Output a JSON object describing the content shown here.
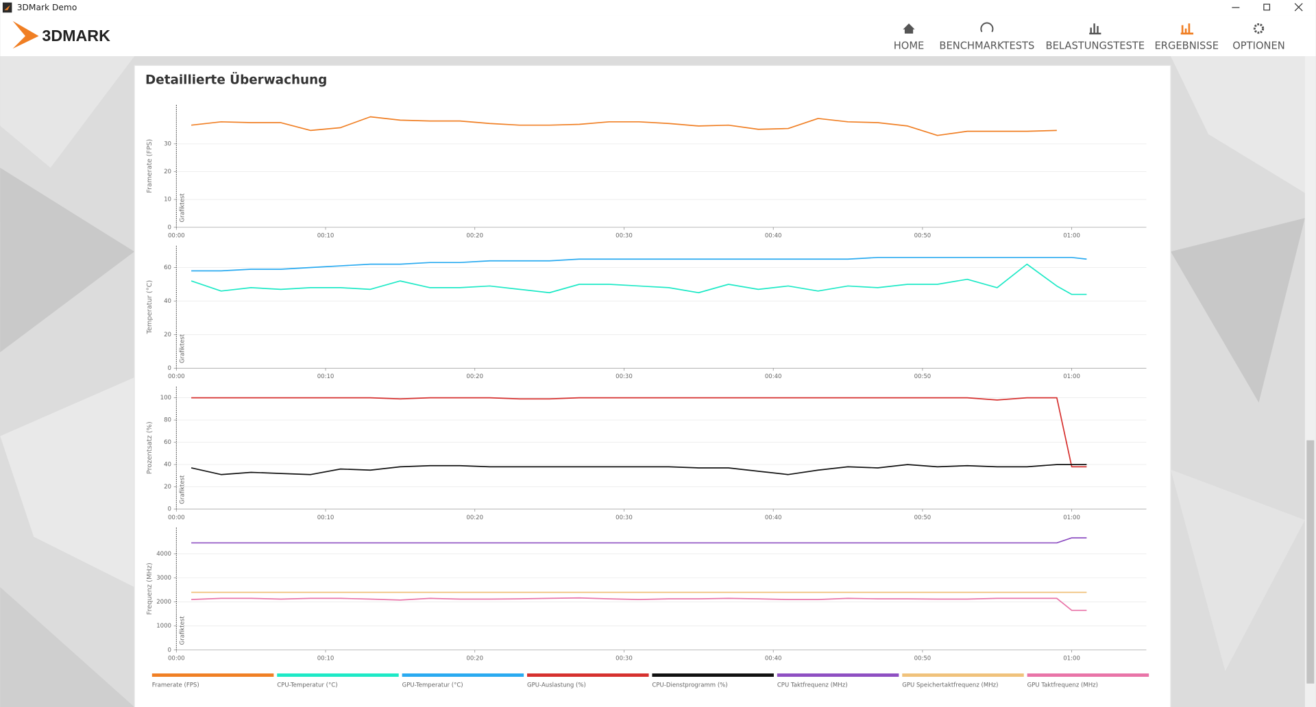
{
  "window": {
    "title": "3DMark Demo"
  },
  "header": {
    "logo": "3DMARK",
    "nav": [
      {
        "label": "HOME",
        "active": false
      },
      {
        "label": "BENCHMARKTESTS",
        "active": false
      },
      {
        "label": "BELASTUNGSTESTE",
        "active": false
      },
      {
        "label": "ERGEBNISSE",
        "active": true
      },
      {
        "label": "OPTIONEN",
        "active": false
      }
    ]
  },
  "section": {
    "title": "Detaillierte Überwachung"
  },
  "chart_data": [
    {
      "type": "line",
      "ylabel": "Framerate (FPS)",
      "annotation": "Grafiktest",
      "grid": true,
      "x": [
        1,
        3,
        5,
        7,
        9,
        11,
        13,
        15,
        17,
        19,
        21,
        23,
        25,
        27,
        29,
        31,
        33,
        35,
        37,
        39,
        41,
        43,
        45,
        47,
        49,
        51,
        53,
        55,
        57,
        59
      ],
      "xlim": [
        0,
        65
      ],
      "xticks": [
        {
          "value": 0,
          "label": "00:00"
        },
        {
          "value": 10,
          "label": "00:10"
        },
        {
          "value": 20,
          "label": "00:20"
        },
        {
          "value": 30,
          "label": "00:30"
        },
        {
          "value": 40,
          "label": "00:40"
        },
        {
          "value": 50,
          "label": "00:50"
        },
        {
          "value": 60,
          "label": "01:00"
        }
      ],
      "ylim": [
        0,
        44
      ],
      "yticks": [
        0,
        10,
        20,
        30
      ],
      "series": [
        {
          "name": "Framerate (FPS)",
          "color": "#f07f24",
          "values": [
            36.7,
            37.9,
            37.6,
            37.6,
            34.8,
            35.8,
            39.7,
            38.5,
            38.2,
            38.2,
            37.3,
            36.7,
            36.7,
            37,
            37.9,
            37.9,
            37.3,
            36.4,
            36.7,
            35.2,
            35.5,
            39.1,
            37.9,
            37.6,
            36.4,
            33,
            34.5,
            34.5,
            34.5,
            34.8
          ]
        }
      ]
    },
    {
      "type": "line",
      "ylabel": "Temperatur (°C)",
      "annotation": "Grafiktest",
      "grid": true,
      "x": [
        1,
        3,
        5,
        7,
        9,
        11,
        13,
        15,
        17,
        19,
        21,
        23,
        25,
        27,
        29,
        31,
        33,
        35,
        37,
        39,
        41,
        43,
        45,
        47,
        49,
        51,
        53,
        55,
        57,
        59,
        60,
        61
      ],
      "xlim": [
        0,
        65
      ],
      "xticks": [
        {
          "value": 0,
          "label": "00:00"
        },
        {
          "value": 10,
          "label": "00:10"
        },
        {
          "value": 20,
          "label": "00:20"
        },
        {
          "value": 30,
          "label": "00:30"
        },
        {
          "value": 40,
          "label": "00:40"
        },
        {
          "value": 50,
          "label": "00:50"
        },
        {
          "value": 60,
          "label": "01:00"
        }
      ],
      "ylim": [
        0,
        73
      ],
      "yticks": [
        0,
        20,
        40,
        60
      ],
      "series": [
        {
          "name": "CPU-Temperatur (°C)",
          "color": "#1de9c6",
          "values": [
            52,
            46,
            48,
            47,
            48,
            48,
            47,
            52,
            48,
            48,
            49,
            47,
            45,
            50,
            50,
            49,
            48,
            45,
            50,
            47,
            49,
            46,
            49,
            48,
            50,
            50,
            53,
            48,
            62,
            49,
            44,
            44
          ]
        },
        {
          "name": "GPU-Temperatur (°C)",
          "color": "#29aaf0",
          "values": [
            58,
            58,
            59,
            59,
            60,
            61,
            62,
            62,
            63,
            63,
            64,
            64,
            64,
            65,
            65,
            65,
            65,
            65,
            65,
            65,
            65,
            65,
            65,
            66,
            66,
            66,
            66,
            66,
            66,
            66,
            66,
            65
          ]
        }
      ]
    },
    {
      "type": "line",
      "ylabel": "Prozentsatz (%)",
      "annotation": "Grafiktest",
      "grid": true,
      "x": [
        1,
        3,
        5,
        7,
        9,
        11,
        13,
        15,
        17,
        19,
        21,
        23,
        25,
        27,
        29,
        31,
        33,
        35,
        37,
        39,
        41,
        43,
        45,
        47,
        49,
        51,
        53,
        55,
        57,
        59,
        60,
        61
      ],
      "xlim": [
        0,
        65
      ],
      "xticks": [
        {
          "value": 0,
          "label": "00:00"
        },
        {
          "value": 10,
          "label": "00:10"
        },
        {
          "value": 20,
          "label": "00:20"
        },
        {
          "value": 30,
          "label": "00:30"
        },
        {
          "value": 40,
          "label": "00:40"
        },
        {
          "value": 50,
          "label": "00:50"
        },
        {
          "value": 60,
          "label": "01:00"
        }
      ],
      "ylim": [
        0,
        110
      ],
      "yticks": [
        0,
        20,
        40,
        60,
        80,
        100
      ],
      "series": [
        {
          "name": "GPU-Auslastung (%)",
          "color": "#d6302e",
          "values": [
            100,
            100,
            100,
            100,
            100,
            100,
            100,
            99,
            100,
            100,
            100,
            99,
            99,
            100,
            100,
            100,
            100,
            100,
            100,
            100,
            100,
            100,
            100,
            100,
            100,
            100,
            100,
            98,
            100,
            100,
            38,
            38
          ]
        },
        {
          "name": "CPU-Dienstprogramm (%)",
          "color": "#111111",
          "values": [
            37,
            31,
            33,
            32,
            31,
            36,
            35,
            38,
            39,
            39,
            38,
            38,
            38,
            38,
            38,
            38,
            38,
            37,
            37,
            34,
            31,
            35,
            38,
            37,
            40,
            38,
            39,
            38,
            38,
            40,
            40,
            40
          ]
        }
      ]
    },
    {
      "type": "line",
      "ylabel": "Frequenz (MHz)",
      "annotation": "Grafiktest",
      "grid": true,
      "x": [
        1,
        3,
        5,
        7,
        9,
        11,
        13,
        15,
        17,
        19,
        21,
        23,
        25,
        27,
        29,
        31,
        33,
        35,
        37,
        39,
        41,
        43,
        45,
        47,
        49,
        51,
        53,
        55,
        57,
        59,
        60,
        61
      ],
      "xlim": [
        0,
        65
      ],
      "xticks": [
        {
          "value": 0,
          "label": "00:00"
        },
        {
          "value": 10,
          "label": "00:10"
        },
        {
          "value": 20,
          "label": "00:20"
        },
        {
          "value": 30,
          "label": "00:30"
        },
        {
          "value": 40,
          "label": "00:40"
        },
        {
          "value": 50,
          "label": "00:50"
        },
        {
          "value": 60,
          "label": "01:00"
        }
      ],
      "ylim": [
        0,
        5100
      ],
      "yticks": [
        0,
        1000,
        2000,
        3000,
        4000
      ],
      "series": [
        {
          "name": "CPU Taktfrequenz (MHz)",
          "color": "#8e4fc2",
          "values": [
            4460,
            4460,
            4460,
            4460,
            4460,
            4460,
            4460,
            4460,
            4460,
            4460,
            4460,
            4460,
            4460,
            4460,
            4460,
            4460,
            4460,
            4460,
            4460,
            4460,
            4460,
            4460,
            4460,
            4460,
            4460,
            4460,
            4460,
            4460,
            4460,
            4460,
            4670,
            4670
          ]
        },
        {
          "name": "GPU Speichertaktfrequenz (MHz)",
          "color": "#f0c27b",
          "values": [
            2400,
            2400,
            2400,
            2400,
            2400,
            2400,
            2400,
            2400,
            2400,
            2400,
            2400,
            2400,
            2400,
            2400,
            2400,
            2400,
            2400,
            2400,
            2400,
            2400,
            2400,
            2400,
            2400,
            2400,
            2400,
            2400,
            2400,
            2400,
            2400,
            2400,
            2400,
            2400
          ]
        },
        {
          "name": "GPU Taktfrequenz (MHz)",
          "color": "#e974a8",
          "values": [
            2100,
            2150,
            2150,
            2120,
            2150,
            2150,
            2120,
            2080,
            2150,
            2120,
            2120,
            2130,
            2150,
            2170,
            2130,
            2100,
            2130,
            2130,
            2150,
            2130,
            2100,
            2100,
            2150,
            2130,
            2130,
            2120,
            2120,
            2150,
            2150,
            2150,
            1650,
            1650
          ]
        }
      ]
    }
  ]
}
